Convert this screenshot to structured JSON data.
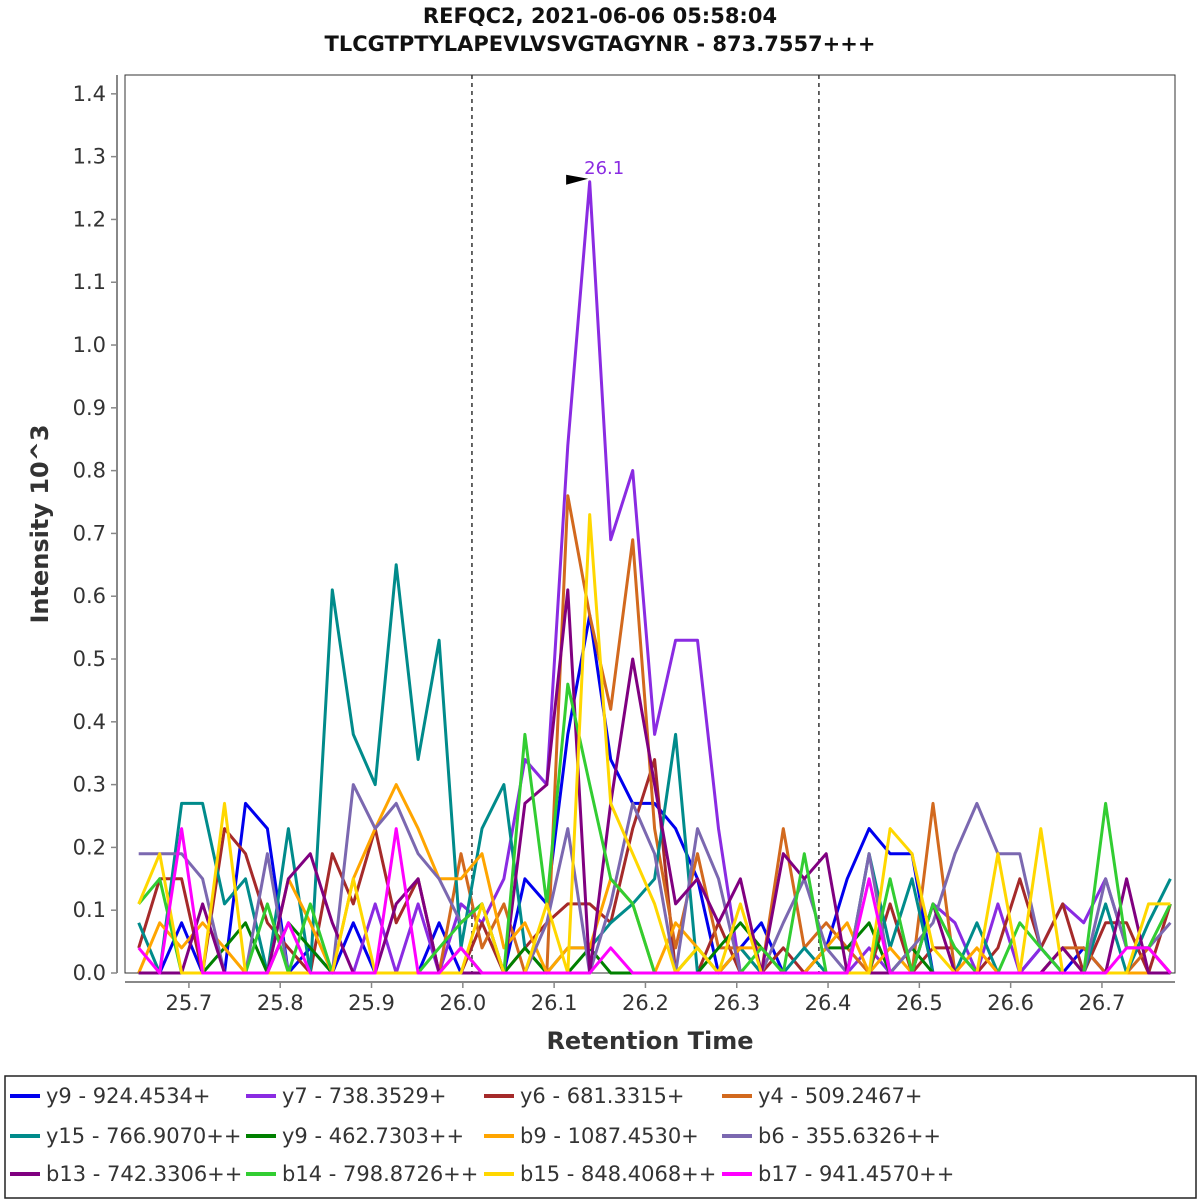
{
  "chart_data": {
    "type": "line",
    "title": "REFQC2, 2021-06-06 05:58:04",
    "subtitle": "TLCGTPTYLAPEVLVSVGTAGYNR - 873.7557+++",
    "xlabel": "Retention Time",
    "ylabel": "Intensity 10^3",
    "xlim": [
      25.63,
      26.78
    ],
    "ylim": [
      0,
      1.43
    ],
    "xticks": [
      "25.7",
      "25.8",
      "25.9",
      "26.0",
      "26.1",
      "26.2",
      "26.3",
      "26.4",
      "26.5",
      "26.6",
      "26.7"
    ],
    "yticks": [
      "0.0",
      "0.1",
      "0.2",
      "0.3",
      "0.4",
      "0.5",
      "0.6",
      "0.7",
      "0.8",
      "0.9",
      "1.0",
      "1.1",
      "1.2",
      "1.3",
      "1.4"
    ],
    "grid": false,
    "legend_position": "bottom",
    "boundaries": [
      26.01,
      26.39
    ],
    "annotation": {
      "text": "26.1",
      "x": 26.146,
      "y": 1.26,
      "color": "#8a2be2"
    },
    "x": [
      25.645,
      25.668,
      25.692,
      25.715,
      25.739,
      25.762,
      25.786,
      25.809,
      25.833,
      25.857,
      25.88,
      25.904,
      25.927,
      25.951,
      25.974,
      25.998,
      26.021,
      26.045,
      26.068,
      26.092,
      26.115,
      26.139,
      26.162,
      26.186,
      26.21,
      26.233,
      26.257,
      26.28,
      26.304,
      26.327,
      26.351,
      26.374,
      26.398,
      26.421,
      26.445,
      26.468,
      26.492,
      26.515,
      26.539,
      26.563,
      26.586,
      26.61,
      26.633,
      26.657,
      26.68,
      26.704,
      26.727,
      26.751,
      26.775
    ],
    "series": [
      {
        "name": "y9 - 924.4534+",
        "color": "#0000ee",
        "values": [
          0.0,
          0.0,
          0.08,
          0.0,
          0.0,
          0.27,
          0.23,
          0.0,
          0.04,
          0.0,
          0.08,
          0.0,
          0.0,
          0.0,
          0.08,
          0.0,
          0.0,
          0.0,
          0.15,
          0.11,
          0.38,
          0.57,
          0.34,
          0.27,
          0.27,
          0.23,
          0.15,
          0.0,
          0.04,
          0.08,
          0.0,
          0.0,
          0.04,
          0.15,
          0.23,
          0.19,
          0.19,
          0.0,
          0.0,
          0.0,
          0.0,
          0.0,
          0.04,
          0.0,
          0.04,
          0.0,
          0.0,
          0.0,
          0.0
        ]
      },
      {
        "name": "y7 - 738.3529+",
        "color": "#8a2be2",
        "values": [
          0.0,
          0.0,
          0.0,
          0.0,
          0.0,
          0.0,
          0.0,
          0.0,
          0.0,
          0.0,
          0.0,
          0.11,
          0.0,
          0.11,
          0.0,
          0.11,
          0.08,
          0.15,
          0.34,
          0.3,
          0.84,
          1.26,
          0.69,
          0.8,
          0.38,
          0.53,
          0.53,
          0.23,
          0.0,
          0.0,
          0.0,
          0.0,
          0.0,
          0.0,
          0.04,
          0.0,
          0.0,
          0.11,
          0.08,
          0.0,
          0.11,
          0.0,
          0.04,
          0.11,
          0.08,
          0.15,
          0.04,
          0.04,
          0.0
        ]
      },
      {
        "name": "y6 - 681.3315+",
        "color": "#a52a2a",
        "values": [
          0.04,
          0.15,
          0.15,
          0.0,
          0.23,
          0.19,
          0.08,
          0.04,
          0.0,
          0.19,
          0.11,
          0.23,
          0.08,
          0.15,
          0.0,
          0.0,
          0.08,
          0.0,
          0.04,
          0.08,
          0.11,
          0.11,
          0.08,
          0.23,
          0.34,
          0.0,
          0.0,
          0.08,
          0.0,
          0.0,
          0.04,
          0.0,
          0.0,
          0.0,
          0.0,
          0.11,
          0.0,
          0.04,
          0.04,
          0.0,
          0.04,
          0.15,
          0.04,
          0.11,
          0.0,
          0.08,
          0.08,
          0.0,
          0.11
        ]
      },
      {
        "name": "y4 - 509.2467+",
        "color": "#d2691e",
        "values": [
          0.0,
          0.0,
          0.0,
          0.0,
          0.0,
          0.0,
          0.0,
          0.0,
          0.0,
          0.0,
          0.0,
          0.0,
          0.0,
          0.0,
          0.0,
          0.19,
          0.04,
          0.11,
          0.0,
          0.0,
          0.76,
          0.57,
          0.42,
          0.69,
          0.23,
          0.04,
          0.19,
          0.04,
          0.04,
          0.0,
          0.23,
          0.04,
          0.08,
          0.04,
          0.0,
          0.0,
          0.0,
          0.27,
          0.0,
          0.0,
          0.0,
          0.0,
          0.0,
          0.04,
          0.04,
          0.0,
          0.0,
          0.04,
          0.0
        ]
      },
      {
        "name": "y15 - 766.9070++",
        "color": "#008b8b",
        "values": [
          0.08,
          0.0,
          0.27,
          0.27,
          0.11,
          0.15,
          0.0,
          0.23,
          0.0,
          0.61,
          0.38,
          0.3,
          0.65,
          0.34,
          0.53,
          0.04,
          0.23,
          0.3,
          0.04,
          0.0,
          0.04,
          0.04,
          0.08,
          0.11,
          0.15,
          0.38,
          0.0,
          0.0,
          0.04,
          0.0,
          0.0,
          0.04,
          0.0,
          0.0,
          0.19,
          0.04,
          0.15,
          0.0,
          0.0,
          0.08,
          0.0,
          0.0,
          0.0,
          0.04,
          0.0,
          0.11,
          0.0,
          0.08,
          0.15
        ]
      },
      {
        "name": "y9 - 462.7303++",
        "color": "#008000",
        "values": [
          0.0,
          0.0,
          0.0,
          0.0,
          0.04,
          0.08,
          0.0,
          0.08,
          0.04,
          0.0,
          0.0,
          0.0,
          0.0,
          0.0,
          0.0,
          0.04,
          0.0,
          0.0,
          0.04,
          0.0,
          0.0,
          0.04,
          0.0,
          0.0,
          0.0,
          0.0,
          0.0,
          0.04,
          0.08,
          0.04,
          0.0,
          0.0,
          0.04,
          0.04,
          0.08,
          0.0,
          0.04,
          0.0,
          0.0,
          0.0,
          0.0,
          0.0,
          0.0,
          0.0,
          0.0,
          0.0,
          0.0,
          0.0,
          0.0
        ]
      },
      {
        "name": "b9 - 1087.4530+",
        "color": "#ffa500",
        "values": [
          0.0,
          0.08,
          0.04,
          0.08,
          0.04,
          0.0,
          0.0,
          0.15,
          0.08,
          0.0,
          0.15,
          0.23,
          0.3,
          0.23,
          0.15,
          0.15,
          0.19,
          0.04,
          0.08,
          0.0,
          0.04,
          0.04,
          0.15,
          0.11,
          0.0,
          0.08,
          0.04,
          0.0,
          0.04,
          0.04,
          0.0,
          0.0,
          0.04,
          0.08,
          0.0,
          0.04,
          0.0,
          0.0,
          0.0,
          0.04,
          0.0,
          0.0,
          0.0,
          0.04,
          0.0,
          0.0,
          0.0,
          0.0,
          0.0
        ]
      },
      {
        "name": "b6 - 355.6326++",
        "color": "#7b68b0",
        "values": [
          0.19,
          0.19,
          0.19,
          0.15,
          0.0,
          0.0,
          0.19,
          0.0,
          0.0,
          0.0,
          0.3,
          0.23,
          0.27,
          0.19,
          0.15,
          0.08,
          0.11,
          0.0,
          0.0,
          0.08,
          0.23,
          0.0,
          0.11,
          0.27,
          0.19,
          0.0,
          0.23,
          0.15,
          0.0,
          0.0,
          0.08,
          0.15,
          0.04,
          0.0,
          0.19,
          0.0,
          0.04,
          0.08,
          0.19,
          0.27,
          0.19,
          0.19,
          0.04,
          0.0,
          0.0,
          0.15,
          0.04,
          0.04,
          0.08
        ]
      },
      {
        "name": "b13 - 742.3306++",
        "color": "#800080",
        "values": [
          0.0,
          0.0,
          0.0,
          0.11,
          0.0,
          0.0,
          0.0,
          0.15,
          0.19,
          0.08,
          0.0,
          0.0,
          0.11,
          0.15,
          0.0,
          0.0,
          0.0,
          0.0,
          0.27,
          0.3,
          0.61,
          0.0,
          0.27,
          0.5,
          0.3,
          0.11,
          0.15,
          0.08,
          0.15,
          0.0,
          0.19,
          0.15,
          0.19,
          0.0,
          0.0,
          0.0,
          0.0,
          0.11,
          0.0,
          0.0,
          0.0,
          0.0,
          0.0,
          0.04,
          0.0,
          0.0,
          0.15,
          0.0,
          0.0
        ]
      },
      {
        "name": "b14 - 798.8726++",
        "color": "#32cd32",
        "values": [
          0.11,
          0.15,
          0.0,
          0.0,
          0.0,
          0.0,
          0.11,
          0.0,
          0.11,
          0.0,
          0.0,
          0.0,
          0.0,
          0.0,
          0.04,
          0.08,
          0.11,
          0.0,
          0.38,
          0.11,
          0.46,
          0.3,
          0.15,
          0.11,
          0.0,
          0.0,
          0.04,
          0.0,
          0.0,
          0.04,
          0.0,
          0.19,
          0.0,
          0.0,
          0.0,
          0.15,
          0.0,
          0.11,
          0.04,
          0.0,
          0.0,
          0.08,
          0.04,
          0.0,
          0.0,
          0.27,
          0.04,
          0.04,
          0.11
        ]
      },
      {
        "name": "b15 - 848.4068++",
        "color": "#ffd700",
        "values": [
          0.11,
          0.19,
          0.0,
          0.0,
          0.27,
          0.0,
          0.0,
          0.0,
          0.0,
          0.0,
          0.15,
          0.0,
          0.0,
          0.0,
          0.0,
          0.0,
          0.11,
          0.0,
          0.0,
          0.11,
          0.0,
          0.73,
          0.27,
          0.19,
          0.11,
          0.0,
          0.04,
          0.0,
          0.11,
          0.0,
          0.0,
          0.0,
          0.0,
          0.0,
          0.0,
          0.23,
          0.19,
          0.04,
          0.0,
          0.0,
          0.19,
          0.0,
          0.23,
          0.0,
          0.0,
          0.0,
          0.0,
          0.11,
          0.11
        ]
      },
      {
        "name": "b17 - 941.4570++",
        "color": "#ff00ff",
        "values": [
          0.04,
          0.0,
          0.23,
          0.0,
          0.0,
          0.0,
          0.0,
          0.08,
          0.0,
          0.0,
          0.0,
          0.0,
          0.23,
          0.0,
          0.0,
          0.04,
          0.0,
          0.0,
          0.0,
          0.0,
          0.0,
          0.0,
          0.04,
          0.0,
          0.0,
          0.0,
          0.0,
          0.0,
          0.0,
          0.0,
          0.0,
          0.0,
          0.0,
          0.0,
          0.15,
          0.0,
          0.0,
          0.0,
          0.0,
          0.0,
          0.0,
          0.0,
          0.0,
          0.0,
          0.0,
          0.0,
          0.04,
          0.04,
          0.0
        ]
      }
    ]
  }
}
